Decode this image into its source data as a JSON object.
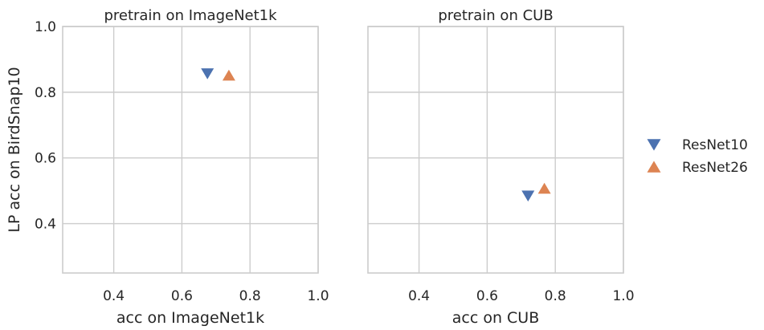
{
  "chart_data": [
    {
      "type": "scatter",
      "title": "pretrain on ImageNet1k",
      "xlabel": "acc on ImageNet1k",
      "ylabel": "LP acc on BirdSnap10",
      "xlim": [
        0.25,
        1.0
      ],
      "ylim": [
        0.25,
        1.0
      ],
      "xticks": [
        "0.4",
        "0.6",
        "0.8",
        "1.0"
      ],
      "yticks": [
        "0.4",
        "0.6",
        "0.8",
        "1.0"
      ],
      "grid": true,
      "series": [
        {
          "name": "ResNet10",
          "marker": "triangle-down",
          "color": "#4c72b0",
          "points": [
            {
              "x": 0.675,
              "y": 0.857
            }
          ]
        },
        {
          "name": "ResNet26",
          "marker": "triangle-up",
          "color": "#dd8452",
          "points": [
            {
              "x": 0.738,
              "y": 0.851
            }
          ]
        }
      ]
    },
    {
      "type": "scatter",
      "title": "pretrain on CUB",
      "xlabel": "acc on CUB",
      "ylabel": "",
      "xlim": [
        0.25,
        1.0
      ],
      "ylim": [
        0.25,
        1.0
      ],
      "xticks": [
        "0.4",
        "0.6",
        "0.8",
        "1.0"
      ],
      "yticks": [],
      "grid": true,
      "series": [
        {
          "name": "ResNet10",
          "marker": "triangle-down",
          "color": "#4c72b0",
          "points": [
            {
              "x": 0.72,
              "y": 0.485
            }
          ]
        },
        {
          "name": "ResNet26",
          "marker": "triangle-up",
          "color": "#dd8452",
          "points": [
            {
              "x": 0.768,
              "y": 0.507
            }
          ]
        }
      ]
    }
  ],
  "legend": {
    "placement": "right",
    "items": [
      {
        "label": "ResNet10",
        "marker": "triangle-down",
        "color": "#4c72b0"
      },
      {
        "label": "ResNet26",
        "marker": "triangle-up",
        "color": "#dd8452"
      }
    ]
  },
  "colors": {
    "grid": "#cccccc",
    "frame": "#cccccc",
    "background": "#ffffff"
  }
}
